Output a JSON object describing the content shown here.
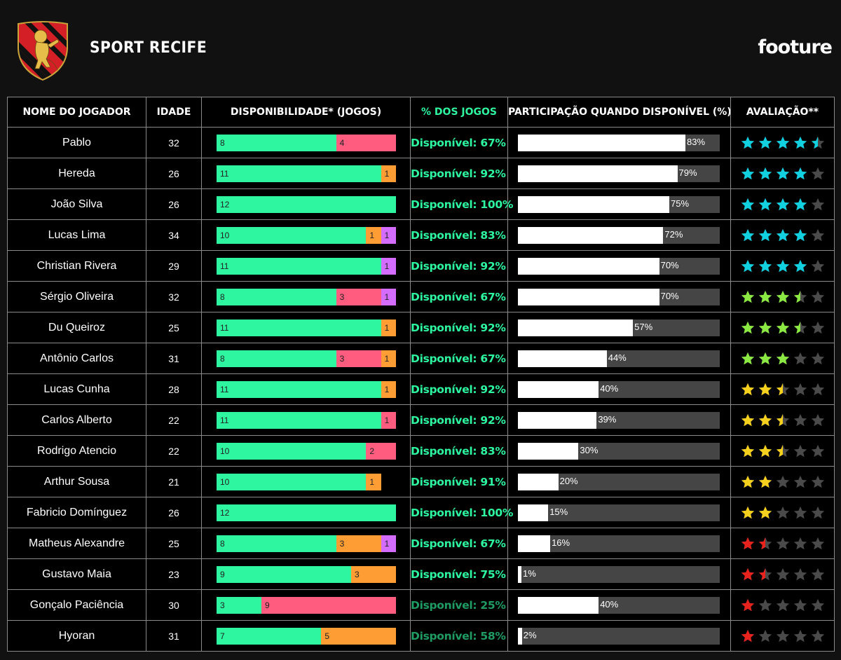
{
  "header": {
    "team": "SPORT RECIFE",
    "brand": "footure"
  },
  "columns": {
    "name": "NOME DO JOGADOR",
    "age": "IDADE",
    "availability": "DISPONIBILIDADE* (JOGOS)",
    "pct": "% DOS JOGOS",
    "participation": "PARTICIPAÇÃO QUANDO DISPONÍVEL (%)",
    "rating": "AVALIAÇÃO**"
  },
  "colors": {
    "available": "#2df5a0",
    "red_segment": "#ff5c7f",
    "orange_segment": "#ff9d35",
    "purple_segment": "#d36cff",
    "pct_bright": "#2df5a0",
    "pct_dim": "#1f9c63",
    "track": "#454545",
    "fill": "#ffffff",
    "star_empty": "#4a4a4a"
  },
  "chart_data": {
    "type": "table",
    "total_games": 12,
    "rows": [
      {
        "name": "Pablo",
        "age": "32",
        "segments": [
          {
            "v": 8,
            "c": "available"
          },
          {
            "v": 4,
            "c": "red_segment"
          }
        ],
        "pct_label": "Disponível: 67%",
        "pct_dim": false,
        "participation": 83,
        "rating": 4.5,
        "star_color": "#11d0e0"
      },
      {
        "name": "Hereda",
        "age": "26",
        "segments": [
          {
            "v": 11,
            "c": "available"
          },
          {
            "v": 1,
            "c": "orange_segment"
          }
        ],
        "pct_label": "Disponível: 92%",
        "pct_dim": false,
        "participation": 79,
        "rating": 4,
        "star_color": "#11d0e0"
      },
      {
        "name": "João Silva",
        "age": "26",
        "segments": [
          {
            "v": 12,
            "c": "available"
          }
        ],
        "pct_label": "Disponível: 100%",
        "pct_dim": false,
        "participation": 75,
        "rating": 4,
        "star_color": "#11d0e0"
      },
      {
        "name": "Lucas Lima",
        "age": "34",
        "segments": [
          {
            "v": 10,
            "c": "available"
          },
          {
            "v": 1,
            "c": "orange_segment"
          },
          {
            "v": 1,
            "c": "purple_segment"
          }
        ],
        "pct_label": "Disponível: 83%",
        "pct_dim": false,
        "participation": 72,
        "rating": 4,
        "star_color": "#11d0e0"
      },
      {
        "name": "Christian Rivera",
        "age": "29",
        "segments": [
          {
            "v": 11,
            "c": "available"
          },
          {
            "v": 1,
            "c": "purple_segment"
          }
        ],
        "pct_label": "Disponível: 92%",
        "pct_dim": false,
        "participation": 70,
        "rating": 4,
        "star_color": "#11d0e0"
      },
      {
        "name": "Sérgio Oliveira",
        "age": "32",
        "segments": [
          {
            "v": 8,
            "c": "available"
          },
          {
            "v": 3,
            "c": "red_segment"
          },
          {
            "v": 1,
            "c": "purple_segment"
          }
        ],
        "pct_label": "Disponível: 67%",
        "pct_dim": false,
        "participation": 70,
        "rating": 3.5,
        "star_color": "#8be843"
      },
      {
        "name": "Du Queiroz",
        "age": "25",
        "segments": [
          {
            "v": 11,
            "c": "available"
          },
          {
            "v": 1,
            "c": "orange_segment"
          }
        ],
        "pct_label": "Disponível: 92%",
        "pct_dim": false,
        "participation": 57,
        "rating": 3.5,
        "star_color": "#8be843"
      },
      {
        "name": "Antônio Carlos",
        "age": "31",
        "segments": [
          {
            "v": 8,
            "c": "available"
          },
          {
            "v": 3,
            "c": "red_segment"
          },
          {
            "v": 1,
            "c": "orange_segment"
          }
        ],
        "pct_label": "Disponível: 67%",
        "pct_dim": false,
        "participation": 44,
        "rating": 3,
        "star_color": "#8be843"
      },
      {
        "name": "Lucas Cunha",
        "age": "28",
        "segments": [
          {
            "v": 11,
            "c": "available"
          },
          {
            "v": 1,
            "c": "orange_segment"
          }
        ],
        "pct_label": "Disponível: 92%",
        "pct_dim": false,
        "participation": 40,
        "rating": 2.5,
        "star_color": "#f5d01e"
      },
      {
        "name": "Carlos Alberto",
        "age": "22",
        "segments": [
          {
            "v": 11,
            "c": "available"
          },
          {
            "v": 1,
            "c": "red_segment"
          }
        ],
        "pct_label": "Disponível: 92%",
        "pct_dim": false,
        "participation": 39,
        "rating": 2.5,
        "star_color": "#f5d01e"
      },
      {
        "name": "Rodrigo Atencio",
        "age": "22",
        "segments": [
          {
            "v": 10,
            "c": "available"
          },
          {
            "v": 2,
            "c": "red_segment"
          }
        ],
        "pct_label": "Disponível: 83%",
        "pct_dim": false,
        "participation": 30,
        "rating": 2.5,
        "star_color": "#f5d01e"
      },
      {
        "name": "Arthur Sousa",
        "age": "21",
        "segments": [
          {
            "v": 10,
            "c": "available"
          },
          {
            "v": 1,
            "c": "orange_segment"
          }
        ],
        "pct_label": "Disponível: 91%",
        "pct_dim": false,
        "participation": 20,
        "rating": 2,
        "star_color": "#f5d01e"
      },
      {
        "name": "Fabricio Domínguez",
        "age": "26",
        "segments": [
          {
            "v": 12,
            "c": "available"
          }
        ],
        "pct_label": "Disponível: 100%",
        "pct_dim": false,
        "participation": 15,
        "rating": 2,
        "star_color": "#f5d01e"
      },
      {
        "name": "Matheus Alexandre",
        "age": "25",
        "segments": [
          {
            "v": 8,
            "c": "available"
          },
          {
            "v": 3,
            "c": "orange_segment"
          },
          {
            "v": 1,
            "c": "purple_segment"
          }
        ],
        "pct_label": "Disponível: 67%",
        "pct_dim": false,
        "participation": 16,
        "rating": 1.5,
        "star_color": "#e8231e"
      },
      {
        "name": "Gustavo Maia",
        "age": "23",
        "segments": [
          {
            "v": 9,
            "c": "available"
          },
          {
            "v": 3,
            "c": "orange_segment"
          }
        ],
        "pct_label": "Disponível: 75%",
        "pct_dim": false,
        "participation": 1,
        "rating": 1.5,
        "star_color": "#e8231e"
      },
      {
        "name": "Gonçalo Paciência",
        "age": "30",
        "segments": [
          {
            "v": 3,
            "c": "available"
          },
          {
            "v": 9,
            "c": "red_segment"
          }
        ],
        "pct_label": "Disponível: 25%",
        "pct_dim": true,
        "participation": 40,
        "rating": 1,
        "star_color": "#e8231e"
      },
      {
        "name": "Hyoran",
        "age": "31",
        "segments": [
          {
            "v": 7,
            "c": "available"
          },
          {
            "v": 5,
            "c": "orange_segment"
          }
        ],
        "pct_label": "Disponível: 58%",
        "pct_dim": true,
        "participation": 2,
        "rating": 1,
        "star_color": "#e8231e"
      }
    ]
  }
}
